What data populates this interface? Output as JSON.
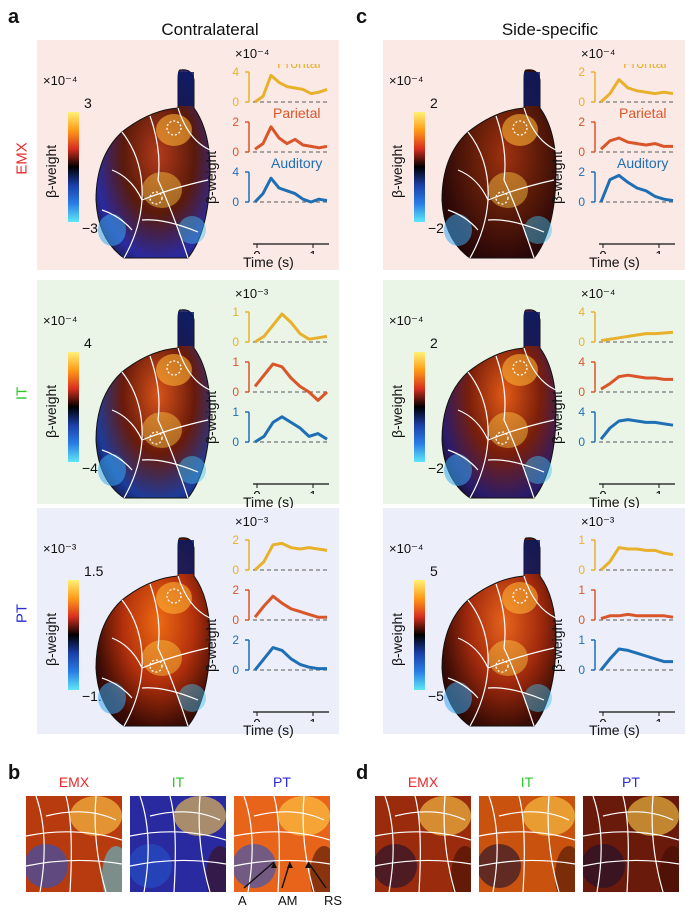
{
  "panels": {
    "a": "a",
    "c": "c",
    "b": "b",
    "d": "d"
  },
  "titles": {
    "contralateral": "Contralateral",
    "side_specific": "Side-specific"
  },
  "rows": [
    {
      "label": "EMX",
      "color": "#e8282b",
      "bg": "#fbe9e6"
    },
    {
      "label": "IT",
      "color": "#2bc62b",
      "bg": "#eaf5e8"
    },
    {
      "label": "PT",
      "color": "#2b2bd9",
      "bg": "#eceefa"
    }
  ],
  "colorbar_title": "β-weight",
  "trace_ylabel": "β-weight",
  "trace_xlabel": "Time (s)",
  "area_names": [
    "Frontal",
    "Parietal",
    "Auditory"
  ],
  "area_colors": [
    "#e8b12c",
    "#d9562a",
    "#1f6fb5"
  ],
  "left_panels": [
    {
      "cbar_scale": "×10⁻⁴",
      "cbar_max": "3",
      "cbar_min": "−3",
      "trace_scale": "×10⁻⁴",
      "ticks": [
        [
          "0",
          "4"
        ],
        [
          "0",
          "2"
        ],
        [
          "0",
          "4"
        ]
      ],
      "xticks": [
        "0",
        "1"
      ]
    },
    {
      "cbar_scale": "×10⁻⁴",
      "cbar_max": "4",
      "cbar_min": "−4",
      "trace_scale": "×10⁻³",
      "ticks": [
        [
          "0",
          "1"
        ],
        [
          "0",
          "1"
        ],
        [
          "0",
          "1"
        ]
      ],
      "xticks": [
        "0",
        "1"
      ]
    },
    {
      "cbar_scale": "×10⁻³",
      "cbar_max": "1.5",
      "cbar_min": "−1.5",
      "trace_scale": "×10⁻³",
      "ticks": [
        [
          "0",
          "2"
        ],
        [
          "0",
          "2"
        ],
        [
          "0",
          "2"
        ]
      ],
      "xticks": [
        "0",
        "1"
      ]
    }
  ],
  "right_panels": [
    {
      "cbar_scale": "×10⁻⁴",
      "cbar_max": "2",
      "cbar_min": "−2",
      "trace_scale": "×10⁻⁴",
      "ticks": [
        [
          "0",
          "2"
        ],
        [
          "0",
          "2"
        ],
        [
          "0",
          "2"
        ]
      ],
      "xticks": [
        "0",
        "1"
      ]
    },
    {
      "cbar_scale": "×10⁻⁴",
      "cbar_max": "2",
      "cbar_min": "−2",
      "trace_scale": "×10⁻⁴",
      "ticks": [
        [
          "0",
          "4"
        ],
        [
          "0",
          "4"
        ],
        [
          "0",
          "4"
        ]
      ],
      "xticks": [
        "0",
        "1"
      ]
    },
    {
      "cbar_scale": "×10⁻⁴",
      "cbar_max": "5",
      "cbar_min": "−5",
      "trace_scale": "×10⁻³",
      "ticks": [
        [
          "0",
          "1"
        ],
        [
          "0",
          "1"
        ],
        [
          "0",
          "1"
        ]
      ],
      "xticks": [
        "0",
        "1"
      ]
    }
  ],
  "bottom_b": [
    "EMX",
    "IT",
    "PT"
  ],
  "bottom_d": [
    "EMX",
    "IT",
    "PT"
  ],
  "arrow_labels": [
    "A",
    "AM",
    "RS"
  ]
}
